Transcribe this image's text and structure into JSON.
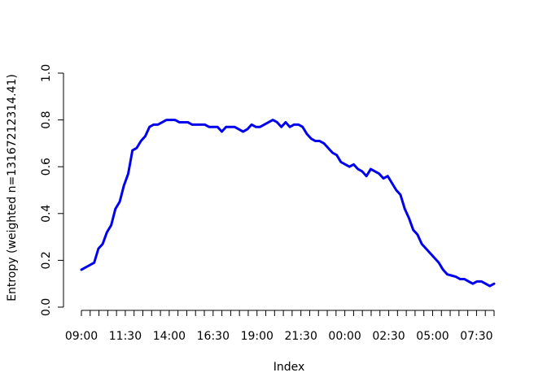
{
  "chart_data": {
    "type": "line",
    "title": "",
    "xlabel": "Index",
    "ylabel": "Entropy (weighted n=13167212314.41)",
    "ylim": [
      0,
      1
    ],
    "y_ticks": [
      0.0,
      0.2,
      0.4,
      0.6,
      0.8,
      1.0
    ],
    "y_tick_labels": [
      "0.0",
      "0.2",
      "0.4",
      "0.6",
      "0.8",
      "1.0"
    ],
    "x_tick_labels": [
      "09:00",
      "11:30",
      "14:00",
      "16:30",
      "19:00",
      "21:30",
      "00:00",
      "02:30",
      "05:00",
      "07:30"
    ],
    "x_tick_count": 48,
    "x_label_every": 5,
    "grid": false,
    "line_color": "#0000EE",
    "series": [
      {
        "values": [
          0.16,
          0.17,
          0.18,
          0.19,
          0.25,
          0.27,
          0.32,
          0.35,
          0.42,
          0.45,
          0.52,
          0.57,
          0.67,
          0.68,
          0.71,
          0.73,
          0.77,
          0.78,
          0.78,
          0.79,
          0.8,
          0.8,
          0.8,
          0.79,
          0.79,
          0.79,
          0.78,
          0.78,
          0.78,
          0.78,
          0.77,
          0.77,
          0.77,
          0.75,
          0.77,
          0.77,
          0.77,
          0.76,
          0.75,
          0.76,
          0.78,
          0.77,
          0.77,
          0.78,
          0.79,
          0.8,
          0.79,
          0.77,
          0.79,
          0.77,
          0.78,
          0.78,
          0.77,
          0.74,
          0.72,
          0.71,
          0.71,
          0.7,
          0.68,
          0.66,
          0.65,
          0.62,
          0.61,
          0.6,
          0.61,
          0.59,
          0.58,
          0.56,
          0.59,
          0.58,
          0.57,
          0.55,
          0.56,
          0.53,
          0.5,
          0.48,
          0.42,
          0.38,
          0.33,
          0.31,
          0.27,
          0.25,
          0.23,
          0.21,
          0.19,
          0.16,
          0.14,
          0.135,
          0.13,
          0.12,
          0.12,
          0.11,
          0.1,
          0.11,
          0.11,
          0.1,
          0.09,
          0.1
        ]
      }
    ]
  }
}
